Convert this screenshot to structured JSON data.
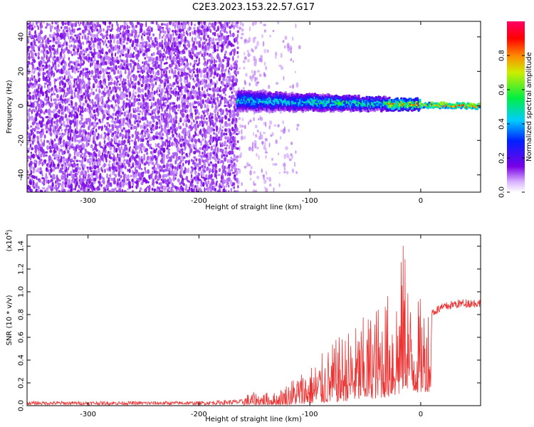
{
  "title": "C2E3.2023.153.22.57.G17",
  "colors": {
    "snr_line": "#ee3333",
    "scatter_low": "#7a00e6",
    "background": "#ffffff"
  },
  "chart_data": [
    {
      "type": "heatmap",
      "xlabel": "Height of straight line (km)",
      "ylabel": "Frequency (Hz)",
      "xlim": [
        -355,
        54
      ],
      "ylim": [
        -50,
        49
      ],
      "xticks": [
        -300,
        -200,
        -100,
        0
      ],
      "xtick_labels": [
        "-300",
        "-200",
        "-100",
        "0"
      ],
      "yticks": [
        -40,
        -20,
        0,
        20,
        40
      ],
      "ytick_labels": [
        "-40",
        "-20",
        "0",
        "20",
        "40"
      ],
      "colorbar": {
        "label": "Normalized spectral amplitude",
        "range": [
          0,
          1
        ],
        "ticks": [
          0.0,
          0.2,
          0.4,
          0.6,
          0.8
        ],
        "tick_labels": [
          "0.0",
          "0.2",
          "0.4",
          "0.6",
          "0.8"
        ],
        "colormap": "rainbow (white-violet-blue-cyan-green-yellow-red-magenta)"
      },
      "description_regions": [
        {
          "x_range": [
            -355,
            -165
          ],
          "freq_range": [
            -50,
            49
          ],
          "amplitude": "low (0.05-0.15) noise"
        },
        {
          "x_range": [
            -165,
            -110
          ],
          "freq_range": [
            -50,
            49
          ],
          "amplitude": "sparse low noise"
        },
        {
          "x_range": [
            -165,
            54
          ],
          "freq_center_start": 3,
          "freq_center_end": 0,
          "amplitude": "0.3-1.0 signal band"
        }
      ],
      "grid": false
    },
    {
      "type": "line",
      "xlabel": "Height of straight line (km)",
      "ylabel": "SNR (10 * v/v)",
      "y_scale_note": "(x10",
      "y_scale_exp": "4",
      "xlim": [
        -355,
        54
      ],
      "ylim": [
        0,
        1.5
      ],
      "xticks": [
        -300,
        -200,
        -100,
        0
      ],
      "xtick_labels": [
        "-300",
        "-200",
        "-100",
        "0"
      ],
      "yticks": [
        0.0,
        0.2,
        0.4,
        0.6,
        0.8,
        1.0,
        1.2,
        1.4
      ],
      "ytick_labels": [
        "0.0",
        "0.2",
        "0.4",
        "0.6",
        "0.8",
        "1.0",
        "1.2",
        "1.4"
      ],
      "series": [
        {
          "x": [
            -355,
            -300,
            -250,
            -200,
            -160,
            -150,
            -130,
            -110,
            -100,
            -90,
            -80,
            -70,
            -60,
            -50,
            -40,
            -30,
            -25,
            -20,
            -15,
            -12,
            -10,
            -5,
            0,
            10,
            20,
            30,
            40,
            54
          ],
          "y": [
            0.02,
            0.02,
            0.02,
            0.02,
            0.03,
            0.05,
            0.05,
            0.08,
            0.12,
            0.15,
            0.2,
            0.25,
            0.3,
            0.35,
            0.42,
            0.5,
            0.55,
            0.6,
            1.0,
            1.0,
            0.7,
            0.75,
            0.78,
            0.82,
            0.86,
            0.89,
            0.9,
            0.9
          ],
          "y_peak": [
            0.06,
            0.06,
            0.07,
            0.07,
            0.1,
            0.12,
            0.12,
            0.3,
            0.35,
            0.45,
            0.55,
            0.65,
            0.7,
            0.8,
            0.9,
            1.0,
            1.1,
            1.15,
            1.5,
            1.45,
            0.95,
            0.95,
            0.95,
            0.95,
            0.96,
            0.97,
            0.96,
            0.95
          ]
        }
      ],
      "grid": false
    }
  ]
}
